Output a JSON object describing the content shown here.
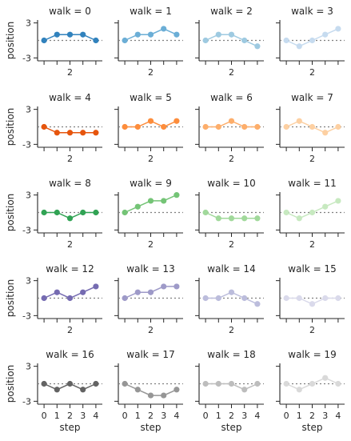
{
  "chart_data": {
    "type": "line",
    "layout": "facet-grid",
    "col_wrap": 4,
    "title_prefix": "walk = ",
    "x": [
      0,
      1,
      2,
      3,
      4
    ],
    "xlim": [
      -0.5,
      4.5
    ],
    "ylim": [
      -3.5,
      3.5
    ],
    "refline_y": 0,
    "x_tick_values": [
      0,
      1,
      2,
      3,
      4
    ],
    "x_tick_labels_inner": [
      "2"
    ],
    "x_tick_labels_bottom": [
      "0",
      "1",
      "2",
      "3",
      "4"
    ],
    "y_tick_labels": [
      "3",
      "-3"
    ],
    "xlabel": "step",
    "ylabel": "position",
    "panels": [
      {
        "walk": 0,
        "color": "#3182bd",
        "values": [
          0,
          1,
          1,
          1,
          0
        ]
      },
      {
        "walk": 1,
        "color": "#6baed6",
        "values": [
          0,
          1,
          1,
          2,
          1
        ]
      },
      {
        "walk": 2,
        "color": "#9ecae1",
        "values": [
          0,
          1,
          1,
          0,
          -1
        ]
      },
      {
        "walk": 3,
        "color": "#c6dbef",
        "values": [
          0,
          -1,
          0,
          1,
          2
        ]
      },
      {
        "walk": 4,
        "color": "#e6550d",
        "values": [
          0,
          -1,
          -1,
          -1,
          -1
        ]
      },
      {
        "walk": 5,
        "color": "#fd8d3c",
        "values": [
          0,
          0,
          1,
          0,
          1
        ]
      },
      {
        "walk": 6,
        "color": "#fdae6b",
        "values": [
          0,
          0,
          1,
          0,
          0
        ]
      },
      {
        "walk": 7,
        "color": "#fdd0a2",
        "values": [
          0,
          1,
          0,
          -1,
          0
        ]
      },
      {
        "walk": 8,
        "color": "#31a354",
        "values": [
          0,
          0,
          -1,
          0,
          0
        ]
      },
      {
        "walk": 9,
        "color": "#74c476",
        "values": [
          0,
          1,
          2,
          2,
          3
        ]
      },
      {
        "walk": 10,
        "color": "#a1d99b",
        "values": [
          0,
          -1,
          -1,
          -1,
          -1
        ]
      },
      {
        "walk": 11,
        "color": "#c7e9c0",
        "values": [
          0,
          -1,
          0,
          1,
          2
        ]
      },
      {
        "walk": 12,
        "color": "#756bb1",
        "values": [
          0,
          1,
          0,
          1,
          2
        ]
      },
      {
        "walk": 13,
        "color": "#9e9ac8",
        "values": [
          0,
          1,
          1,
          2,
          2
        ]
      },
      {
        "walk": 14,
        "color": "#bcbddc",
        "values": [
          0,
          0,
          1,
          0,
          -1
        ]
      },
      {
        "walk": 15,
        "color": "#dadaeb",
        "values": [
          0,
          0,
          -1,
          0,
          0
        ]
      },
      {
        "walk": 16,
        "color": "#636363",
        "values": [
          0,
          -1,
          0,
          -1,
          0
        ]
      },
      {
        "walk": 17,
        "color": "#969696",
        "values": [
          0,
          -1,
          -2,
          -2,
          -1
        ]
      },
      {
        "walk": 18,
        "color": "#bdbdbd",
        "values": [
          0,
          0,
          0,
          -1,
          0
        ]
      },
      {
        "walk": 19,
        "color": "#d9d9d9",
        "values": [
          0,
          -1,
          0,
          1,
          0
        ]
      }
    ]
  }
}
